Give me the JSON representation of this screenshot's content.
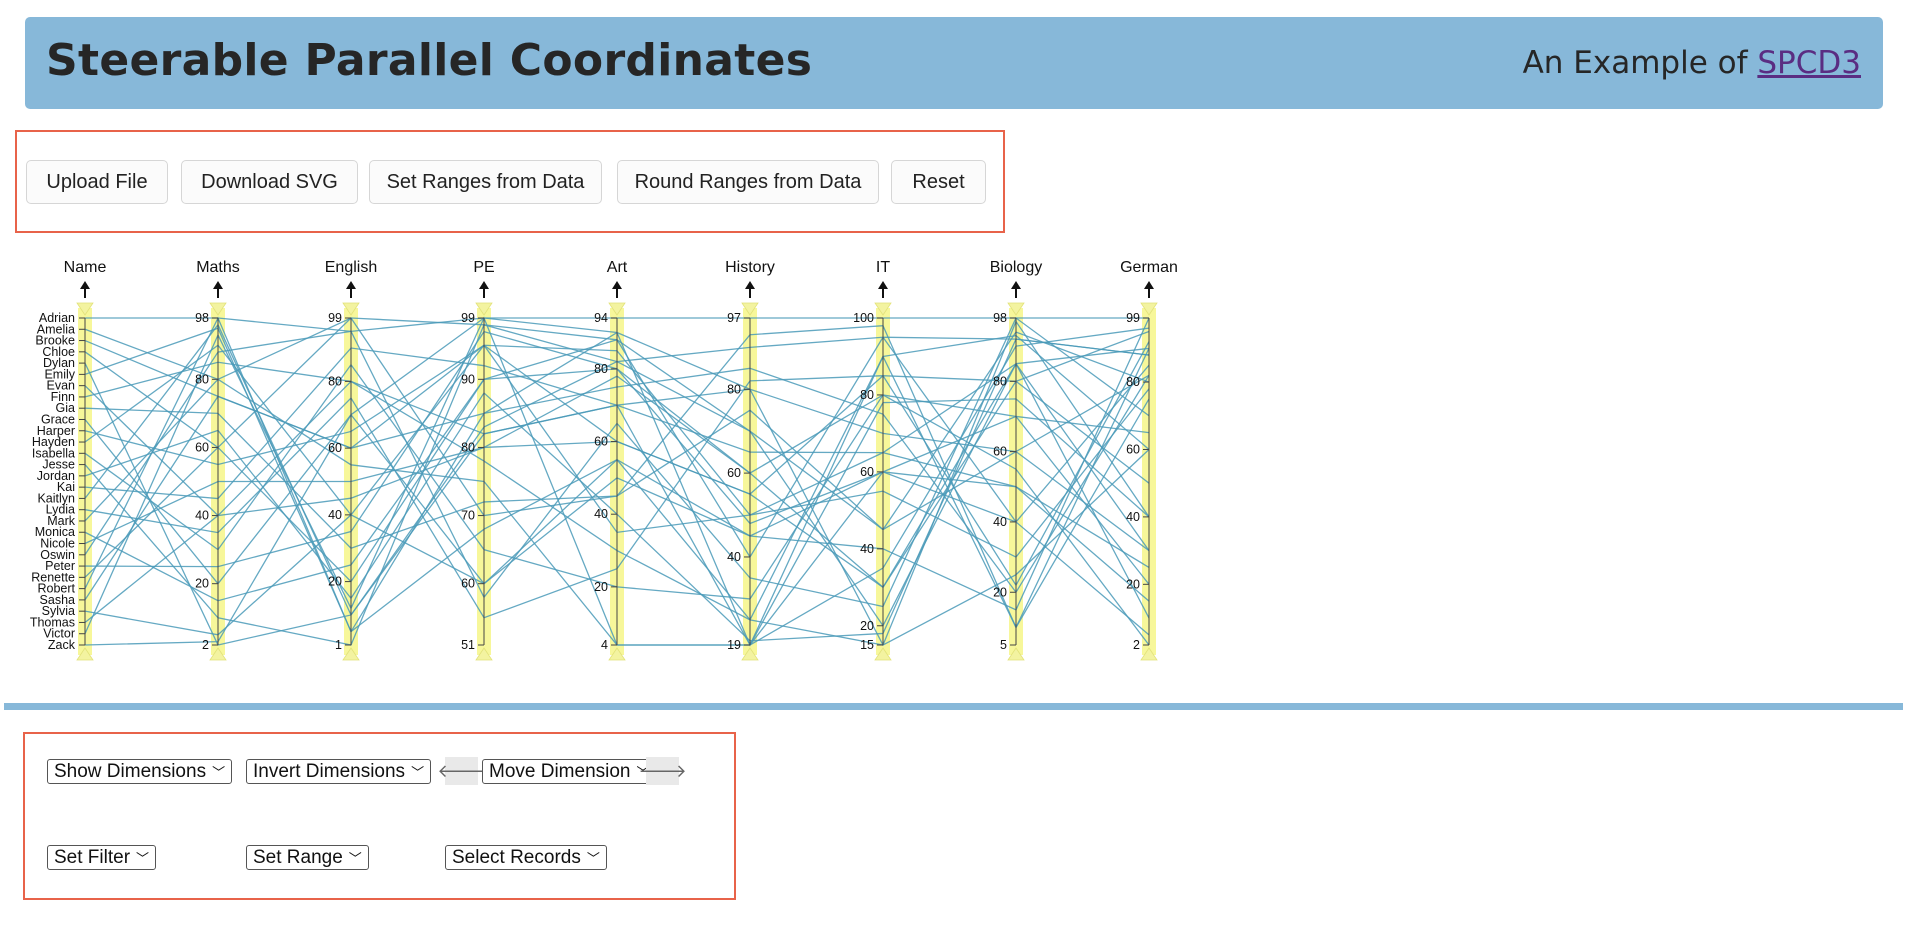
{
  "header": {
    "title": "Steerable Parallel Coordinates",
    "subtitle_prefix": "An Example of",
    "subtitle_link": "SPCD3"
  },
  "toolbar": {
    "buttons": [
      "Upload File",
      "Download SVG",
      "Set Ranges from Data",
      "Round Ranges from Data",
      "Reset"
    ]
  },
  "controls": {
    "show_dimensions": "Show Dimensions",
    "invert_dimensions": "Invert Dimensions",
    "move_left": "🡐",
    "move_dimension": "Move Dimension",
    "move_right": "🡒",
    "set_filter": "Set Filter",
    "set_range": "Set Range",
    "select_records": "Select Records"
  },
  "colors": {
    "header_bg": "#87b8d9",
    "line": "#4a9ab8",
    "axis_band": "#f7f79a",
    "highlight_border": "#e8634a"
  },
  "chart_data": {
    "type": "parallel-coordinates",
    "names": [
      "Adrian",
      "Amelia",
      "Brooke",
      "Chloe",
      "Dylan",
      "Emily",
      "Evan",
      "Finn",
      "Gia",
      "Grace",
      "Harper",
      "Hayden",
      "Isabella",
      "Jesse",
      "Jordan",
      "Kai",
      "Kaitlyn",
      "Lydia",
      "Mark",
      "Monica",
      "Nicole",
      "Oswin",
      "Peter",
      "Renette",
      "Robert",
      "Sasha",
      "Sylvia",
      "Thomas",
      "Victor",
      "Zack"
    ],
    "axes": [
      {
        "label": "Name",
        "categorical": true
      },
      {
        "label": "Maths",
        "min": 2,
        "max": 98,
        "ticks": [
          2,
          20,
          40,
          60,
          80,
          98
        ]
      },
      {
        "label": "English",
        "min": 1,
        "max": 99,
        "ticks": [
          1,
          20,
          40,
          60,
          80,
          99
        ]
      },
      {
        "label": "PE",
        "min": 51,
        "max": 99,
        "ticks": [
          51,
          60,
          70,
          80,
          90,
          99
        ]
      },
      {
        "label": "Art",
        "min": 4,
        "max": 94,
        "ticks": [
          4,
          20,
          40,
          60,
          80,
          94
        ]
      },
      {
        "label": "History",
        "min": 19,
        "max": 97,
        "ticks": [
          19,
          40,
          60,
          80,
          97
        ]
      },
      {
        "label": "IT",
        "min": 15,
        "max": 100,
        "ticks": [
          15,
          20,
          40,
          60,
          80,
          100
        ]
      },
      {
        "label": "Biology",
        "min": 5,
        "max": 98,
        "ticks": [
          5,
          20,
          40,
          60,
          80,
          98
        ]
      },
      {
        "label": "German",
        "min": 2,
        "max": 99,
        "ticks": [
          2,
          20,
          40,
          60,
          80,
          99
        ]
      }
    ],
    "records": [
      [
        98,
        95,
        99,
        94,
        97,
        100,
        98,
        99
      ],
      [
        80,
        99,
        98,
        82,
        90,
        95,
        92,
        88
      ],
      [
        75,
        60,
        95,
        60,
        55,
        85,
        80,
        95
      ],
      [
        60,
        20,
        90,
        80,
        48,
        60,
        40,
        85
      ],
      [
        2,
        10,
        82,
        70,
        19,
        90,
        93,
        60
      ],
      [
        95,
        5,
        85,
        75,
        85,
        75,
        20,
        82
      ],
      [
        40,
        45,
        80,
        78,
        60,
        30,
        85,
        90
      ],
      [
        85,
        80,
        78,
        30,
        25,
        15,
        97,
        40
      ],
      [
        70,
        30,
        72,
        45,
        93,
        98,
        10,
        75
      ],
      [
        20,
        70,
        99,
        90,
        80,
        70,
        60,
        30
      ],
      [
        55,
        65,
        95,
        85,
        50,
        55,
        30,
        78
      ],
      [
        90,
        40,
        60,
        55,
        45,
        40,
        15,
        99
      ],
      [
        30,
        85,
        65,
        20,
        30,
        80,
        70,
        20
      ],
      [
        10,
        1,
        98,
        88,
        70,
        20,
        85,
        10
      ],
      [
        65,
        15,
        88,
        40,
        20,
        18,
        92,
        88
      ],
      [
        45,
        90,
        92,
        70,
        65,
        65,
        50,
        15
      ],
      [
        96,
        10,
        83,
        82,
        70,
        45,
        94,
        80
      ],
      [
        35,
        75,
        55,
        25,
        82,
        85,
        22,
        92
      ],
      [
        80,
        55,
        75,
        4,
        19,
        60,
        70,
        65
      ],
      [
        15,
        25,
        90,
        88,
        40,
        95,
        40,
        5
      ],
      [
        50,
        50,
        80,
        60,
        55,
        30,
        80,
        50
      ],
      [
        88,
        95,
        58,
        65,
        35,
        25,
        98,
        70
      ],
      [
        25,
        35,
        97,
        80,
        60,
        80,
        55,
        2
      ],
      [
        60,
        99,
        70,
        45,
        75,
        45,
        60,
        82
      ],
      [
        98,
        5,
        68,
        55,
        25,
        90,
        10,
        90
      ],
      [
        75,
        60,
        85,
        90,
        19,
        78,
        75,
        40
      ],
      [
        5,
        40,
        95,
        35,
        50,
        65,
        85,
        30
      ],
      [
        40,
        80,
        82,
        70,
        80,
        15,
        25,
        60
      ],
      [
        93,
        12,
        99,
        4,
        19,
        35,
        90,
        96
      ],
      [
        3,
        70,
        60,
        50,
        45,
        60,
        50,
        25
      ]
    ]
  }
}
